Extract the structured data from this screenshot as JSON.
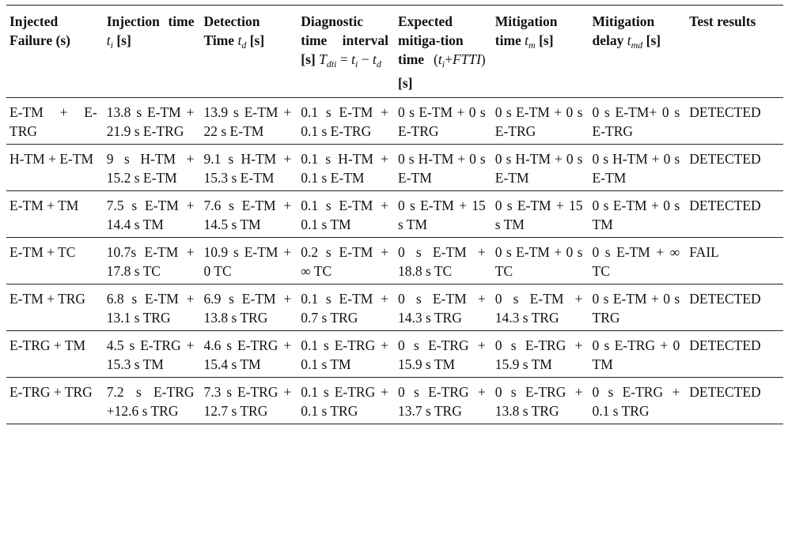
{
  "table": {
    "header": [
      [
        [
          "t",
          "Injected Failure (s)"
        ]
      ],
      [
        [
          "t",
          "Injection time "
        ],
        [
          "i",
          "t"
        ],
        [
          "s",
          "i"
        ],
        [
          "t",
          " [s]"
        ]
      ],
      [
        [
          "t",
          "Detection Time "
        ],
        [
          "i",
          "t"
        ],
        [
          "s",
          "d"
        ],
        [
          "t",
          " [s]"
        ]
      ],
      [
        [
          "t",
          "Diagnostic time interval [s] "
        ],
        [
          "i",
          "T"
        ],
        [
          "s",
          "dti"
        ],
        [
          "m",
          " = "
        ],
        [
          "i",
          "t"
        ],
        [
          "s",
          "i"
        ],
        [
          "m",
          " − "
        ],
        [
          "i",
          "t"
        ],
        [
          "s",
          "d"
        ]
      ],
      [
        [
          "t",
          "Expected mitiga-tion time "
        ],
        [
          "m",
          "("
        ],
        [
          "i",
          "t"
        ],
        [
          "s",
          "i"
        ],
        [
          "m",
          "+"
        ],
        [
          "i",
          "FTTI"
        ],
        [
          "m",
          ")"
        ],
        [
          "t",
          " [s]"
        ]
      ],
      [
        [
          "t",
          "Mitigation time "
        ],
        [
          "i",
          "t"
        ],
        [
          "s",
          "m"
        ],
        [
          "t",
          " [s]"
        ]
      ],
      [
        [
          "t",
          "Mitigation delay "
        ],
        [
          "i",
          "t"
        ],
        [
          "s",
          "md"
        ],
        [
          "t",
          " [s]"
        ]
      ],
      [
        [
          "t",
          "Test results"
        ]
      ]
    ],
    "rows": [
      [
        "E-TM + E-TRG",
        "13.8 s E-TM + 21.9 s E-TRG",
        "13.9 s E-TM + 22 s E-TM",
        "0.1 s E-TM + 0.1 s E-TRG",
        "0 s E-TM + 0 s E-TRG",
        "0 s E-TM + 0 s E-TRG",
        "0 s E-TM+ 0 s E-TRG",
        "DETECTED"
      ],
      [
        "H-TM + E-TM",
        "9 s H-TM + 15.2 s E-TM",
        "9.1 s H-TM + 15.3 s E-TM",
        "0.1 s H-TM + 0.1 s E-TM",
        "0 s H-TM + 0 s E-TM",
        "0 s H-TM + 0 s E-TM",
        "0 s H-TM + 0 s E-TM",
        "DETECTED"
      ],
      [
        "E-TM + TM",
        "7.5 s E-TM + 14.4 s TM",
        "7.6 s E-TM + 14.5 s TM",
        "0.1 s E-TM + 0.1 s TM",
        "0 s E-TM + 15 s TM",
        "0 s E-TM + 15 s TM",
        "0 s E-TM + 0 s TM",
        "DETECTED"
      ],
      [
        "E-TM + TC",
        "10.7s E-TM + 17.8 s TC",
        "10.9 s E-TM + 0 TC",
        "0.2 s E-TM + ∞ TC",
        "0 s E-TM + 18.8 s TC",
        "0 s E-TM + 0 s TC",
        "0 s E-TM + ∞ TC",
        "FAIL"
      ],
      [
        "E-TM + TRG",
        "6.8 s E-TM + 13.1 s TRG",
        "6.9 s E-TM + 13.8 s TRG",
        "0.1 s E-TM + 0.7 s TRG",
        "0 s E-TM + 14.3 s TRG",
        "0 s E-TM + 14.3 s TRG",
        "0 s E-TM + 0 s TRG",
        "DETECTED"
      ],
      [
        "E-TRG + TM",
        "4.5 s E-TRG + 15.3 s TM",
        "4.6 s E-TRG + 15.4 s TM",
        "0.1 s E-TRG + 0.1 s TM",
        "0 s E-TRG + 15.9 s TM",
        "0 s E-TRG + 15.9 s TM",
        "0 s E-TRG + 0 TM",
        "DETECTED"
      ],
      [
        "E-TRG + TRG",
        "7.2 s E-TRG +12.6 s TRG",
        "7.3 s E-TRG + 12.7 s TRG",
        "0.1 s E-TRG + 0.1 s TRG",
        "0 s E-TRG + 13.7 s TRG",
        "0 s E-TRG + 13.8 s TRG",
        "0 s E-TRG + 0.1 s TRG",
        "DETECTED"
      ]
    ]
  }
}
